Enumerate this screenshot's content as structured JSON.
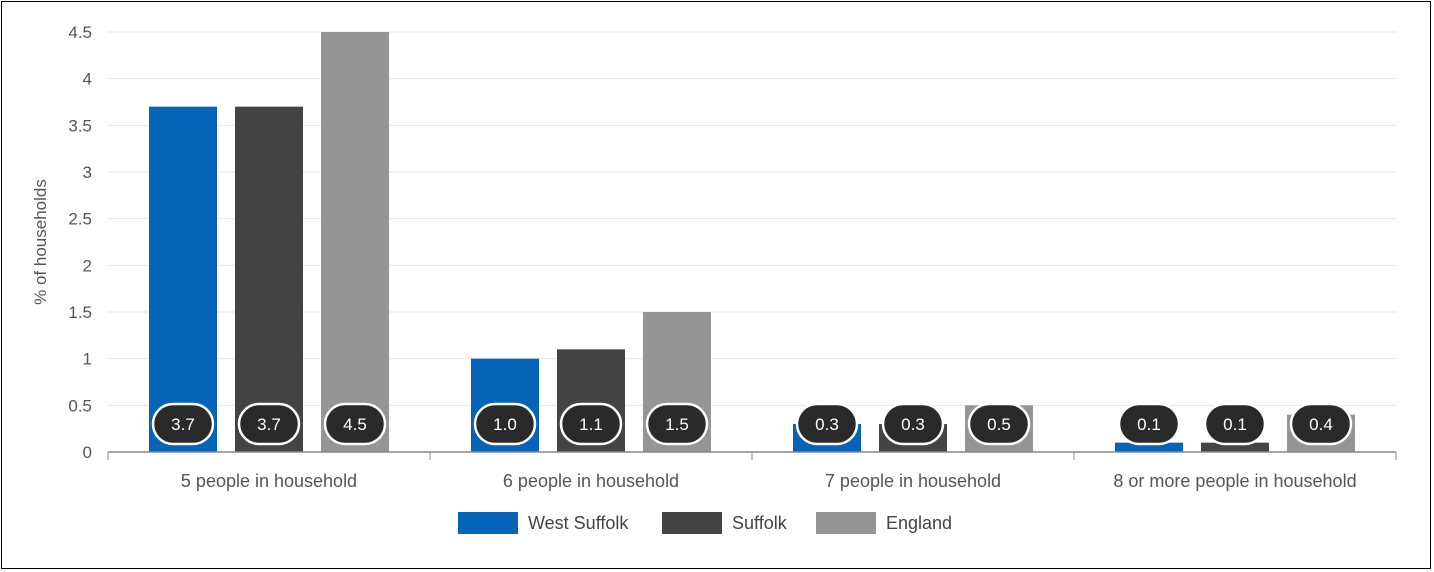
{
  "chart_data": {
    "type": "bar",
    "ylabel": "% of households",
    "xlabel": "",
    "ylim": [
      0,
      4.5
    ],
    "yticks": [
      "0",
      "0.5",
      "1",
      "1.5",
      "2",
      "2.5",
      "3",
      "3.5",
      "4",
      "4.5"
    ],
    "grid": true,
    "legend_position": "bottom",
    "categories": [
      "5 people in household",
      "6 people in household",
      "7 people in household",
      "8 or more people in household"
    ],
    "series": [
      {
        "name": "West Suffolk",
        "color": "#0563b8",
        "values": [
          3.7,
          1.0,
          0.3,
          0.1
        ],
        "labels": [
          "3.7",
          "1.0",
          "0.3",
          "0.1"
        ]
      },
      {
        "name": "Suffolk",
        "color": "#444444",
        "values": [
          3.7,
          1.1,
          0.3,
          0.1
        ],
        "labels": [
          "3.7",
          "1.1",
          "0.3",
          "0.1"
        ]
      },
      {
        "name": "England",
        "color": "#959595",
        "values": [
          4.5,
          1.5,
          0.5,
          0.4
        ],
        "labels": [
          "4.5",
          "1.5",
          "0.5",
          "0.4"
        ]
      }
    ]
  }
}
